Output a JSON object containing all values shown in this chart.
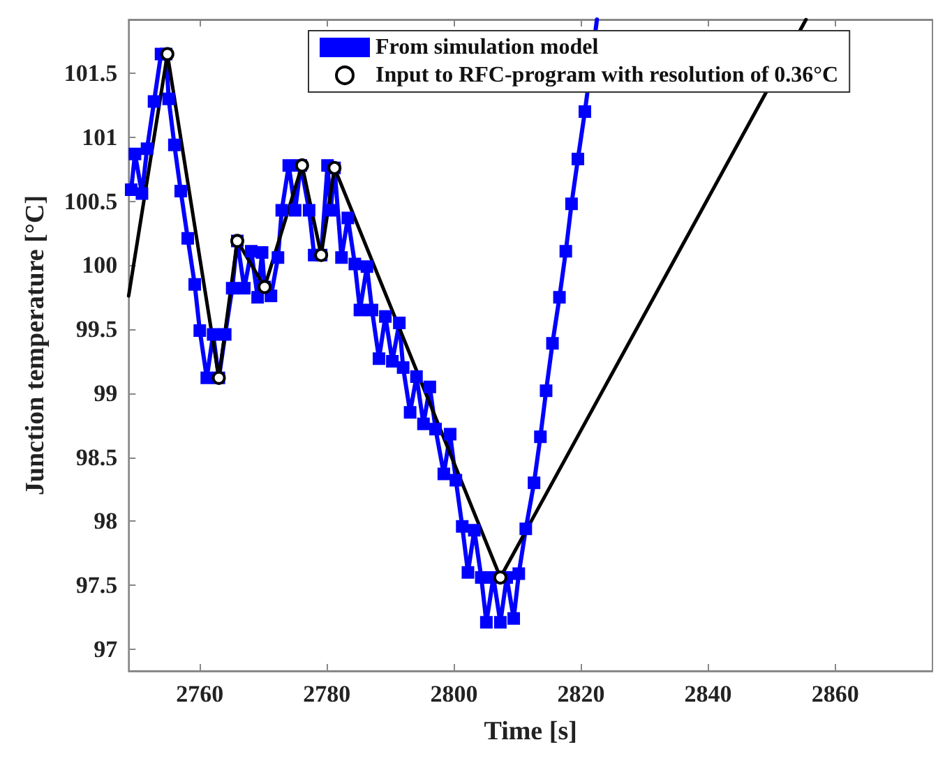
{
  "chart_data": {
    "type": "line",
    "xlabel": "Time [s]",
    "ylabel": "Junction temperature [°C]",
    "xlim": [
      2748.8,
      2875.3
    ],
    "ylim": [
      96.83,
      101.92
    ],
    "xticks": [
      2760,
      2780,
      2800,
      2820,
      2840,
      2860
    ],
    "yticks": [
      97,
      97.5,
      98,
      98.5,
      99,
      99.5,
      100,
      100.5,
      101,
      101.5
    ],
    "grid": false,
    "legend": "top",
    "series": [
      {
        "name": "From simulation model",
        "color": "#0000ff",
        "marker": "square",
        "x": [
          2749.2,
          2749.8,
          2750.9,
          2751.7,
          2752.8,
          2753.9,
          2754.7,
          2755.1,
          2756.0,
          2757.0,
          2758.1,
          2759.2,
          2760.0,
          2761.1,
          2762.1,
          2763.0,
          2764.0,
          2765.1,
          2765.9,
          2767.0,
          2768.1,
          2769.1,
          2769.8,
          2770.2,
          2771.2,
          2772.3,
          2772.9,
          2774.0,
          2775.0,
          2775.9,
          2777.2,
          2778.0,
          2779.1,
          2780.1,
          2780.6,
          2781.2,
          2782.3,
          2783.3,
          2784.4,
          2785.2,
          2786.3,
          2787.1,
          2788.2,
          2789.2,
          2790.3,
          2791.4,
          2792.0,
          2793.1,
          2794.1,
          2795.2,
          2796.2,
          2797.1,
          2798.4,
          2799.4,
          2800.3,
          2801.3,
          2802.2,
          2803.2,
          2804.3,
          2805.1,
          2806.2,
          2807.3,
          2808.3,
          2809.4,
          2810.2,
          2811.3,
          2812.6,
          2813.6,
          2814.5,
          2815.5,
          2816.6,
          2817.6,
          2818.5,
          2819.5,
          2820.6,
          2822.5
        ],
        "values": [
          100.59,
          100.87,
          100.56,
          100.91,
          101.28,
          101.65,
          101.65,
          101.3,
          100.94,
          100.58,
          100.21,
          99.85,
          99.49,
          99.12,
          99.46,
          99.12,
          99.46,
          99.82,
          100.19,
          99.82,
          100.11,
          99.75,
          100.1,
          99.83,
          99.76,
          100.06,
          100.43,
          100.78,
          100.43,
          100.78,
          100.43,
          100.08,
          100.08,
          100.78,
          100.43,
          100.76,
          100.06,
          100.37,
          100.01,
          99.65,
          99.99,
          99.65,
          99.27,
          99.6,
          99.25,
          99.55,
          99.2,
          98.85,
          99.13,
          98.76,
          99.05,
          98.72,
          98.37,
          98.68,
          98.32,
          97.96,
          97.6,
          97.93,
          97.56,
          97.21,
          97.56,
          97.21,
          97.56,
          97.24,
          97.59,
          97.94,
          98.3,
          98.66,
          99.02,
          99.39,
          99.75,
          100.11,
          100.48,
          100.83,
          101.2,
          101.92
        ]
      },
      {
        "name": "Input to RFC-program with resolution of 0.36°C",
        "color": "#000000",
        "marker": "circle",
        "x": [
          2748.8,
          2754.9,
          2763.0,
          2765.9,
          2770.2,
          2776.1,
          2779.1,
          2781.2,
          2807.3,
          2855.4
        ],
        "values": [
          99.76,
          101.65,
          99.12,
          100.19,
          99.83,
          100.78,
          100.08,
          100.76,
          97.56,
          101.92
        ]
      }
    ]
  }
}
